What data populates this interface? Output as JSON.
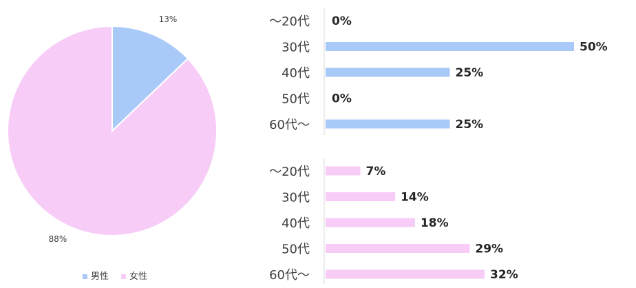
{
  "colors": {
    "male": "#a9caf8",
    "female": "#f7cdf8",
    "axis": "#d9d9d9",
    "text": "#404040"
  },
  "chart_data": [
    {
      "type": "pie",
      "slices": [
        {
          "name": "男性",
          "value": 13,
          "label": "13%",
          "color": "#a9caf8"
        },
        {
          "name": "女性",
          "value": 88,
          "label": "88%",
          "color": "#f7cdf8"
        }
      ],
      "legend": [
        "男性",
        "女性"
      ],
      "legend_position": "bottom"
    },
    {
      "type": "bar",
      "orientation": "horizontal",
      "categories": [
        "〜20代",
        "30代",
        "40代",
        "50代",
        "60代〜"
      ],
      "values": [
        0,
        50,
        25,
        0,
        25
      ],
      "value_labels": [
        "0%",
        "50%",
        "25%",
        "0%",
        "25%"
      ],
      "color": "#a9caf8",
      "xlim": [
        0,
        50
      ]
    },
    {
      "type": "bar",
      "orientation": "horizontal",
      "categories": [
        "〜20代",
        "30代",
        "40代",
        "50代",
        "60代〜"
      ],
      "values": [
        7,
        14,
        18,
        29,
        32
      ],
      "value_labels": [
        "7%",
        "14%",
        "18%",
        "29%",
        "32%"
      ],
      "color": "#f7cdf8",
      "xlim": [
        0,
        32
      ]
    }
  ]
}
